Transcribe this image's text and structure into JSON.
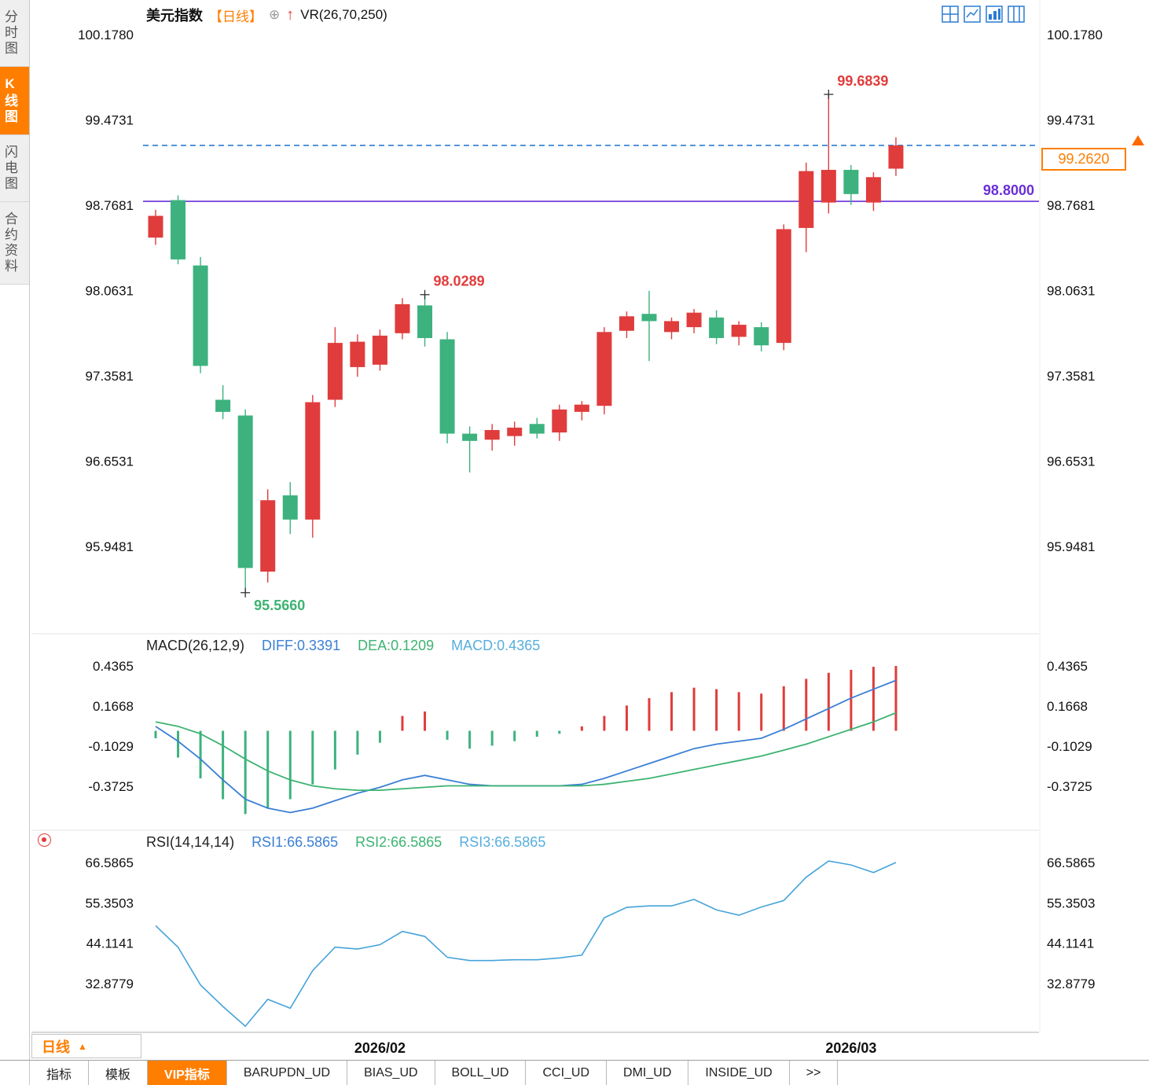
{
  "sidebar": {
    "tabs": [
      {
        "label": "分时图",
        "active": false
      },
      {
        "label": "K线图",
        "active": true
      },
      {
        "label": "闪电图",
        "active": false
      },
      {
        "label": "合约资料",
        "active": false
      }
    ]
  },
  "header": {
    "symbol": "美元指数",
    "period": "【日线】",
    "add_icon": "⊕",
    "arrow_icon": "↑",
    "overlay_indicator": "VR(26,70,250)"
  },
  "top_right_icons": [
    {
      "name": "layout-quad-icon"
    },
    {
      "name": "layout-line-icon"
    },
    {
      "name": "layout-bars-icon"
    },
    {
      "name": "layout-split-icon"
    }
  ],
  "price_box": {
    "value": "99.2620"
  },
  "macd_header": {
    "title": "MACD(26,12,9)",
    "diff": "DIFF:0.3391",
    "dea": "DEA:0.1209",
    "macd": "MACD:0.4365"
  },
  "rsi_header": {
    "title": "RSI(14,14,14)",
    "rsi1": "RSI1:66.5865",
    "rsi2": "RSI2:66.5865",
    "rsi3": "RSI3:66.5865"
  },
  "bottom": {
    "period_label": "日线",
    "period_arrow": "▲"
  },
  "bottom_tabs": {
    "items": [
      {
        "label": "指标",
        "active": false
      },
      {
        "label": "模板",
        "active": false
      },
      {
        "label": "VIP指标",
        "active": true
      },
      {
        "label": "BARUPDN_UD",
        "active": false
      },
      {
        "label": "BIAS_UD",
        "active": false
      },
      {
        "label": "BOLL_UD",
        "active": false
      },
      {
        "label": "CCI_UD",
        "active": false
      },
      {
        "label": "DMI_UD",
        "active": false
      },
      {
        "label": "INSIDE_UD",
        "active": false
      },
      {
        "label": ">>",
        "active": false
      }
    ]
  },
  "chart_data": {
    "type": "candlestick",
    "title": "美元指数 日线",
    "price_axis_ticks": [
      "100.1780",
      "99.4731",
      "98.7681",
      "98.0631",
      "97.3581",
      "96.6531",
      "95.9481"
    ],
    "macd_axis_ticks": [
      "0.4365",
      "0.1668",
      "-0.1029",
      "-0.3725"
    ],
    "rsi_axis_ticks": [
      "66.5865",
      "55.3503",
      "44.1141",
      "32.8779"
    ],
    "x_axis": [
      {
        "label": "2026/02",
        "index": 10
      },
      {
        "label": "2026/03",
        "index": 31
      }
    ],
    "candles": [
      [
        98.5,
        98.73,
        98.44,
        98.68
      ],
      [
        98.81,
        98.85,
        98.28,
        98.32
      ],
      [
        98.27,
        98.34,
        97.38,
        97.44
      ],
      [
        97.16,
        97.28,
        97.0,
        97.06
      ],
      [
        97.03,
        97.08,
        95.566,
        95.77
      ],
      [
        95.74,
        96.42,
        95.65,
        96.33
      ],
      [
        96.37,
        96.48,
        96.05,
        96.17
      ],
      [
        96.17,
        97.2,
        96.02,
        97.14
      ],
      [
        97.16,
        97.76,
        97.1,
        97.63
      ],
      [
        97.43,
        97.7,
        97.35,
        97.64
      ],
      [
        97.45,
        97.74,
        97.4,
        97.69
      ],
      [
        97.71,
        98.0,
        97.66,
        97.95
      ],
      [
        97.94,
        98.0289,
        97.6,
        97.67
      ],
      [
        97.66,
        97.72,
        96.8,
        96.88
      ],
      [
        96.88,
        96.94,
        96.56,
        96.82
      ],
      [
        96.83,
        96.96,
        96.74,
        96.91
      ],
      [
        96.86,
        96.98,
        96.78,
        96.93
      ],
      [
        96.96,
        97.01,
        96.84,
        96.88
      ],
      [
        96.89,
        97.12,
        96.82,
        97.08
      ],
      [
        97.06,
        97.15,
        96.99,
        97.12
      ],
      [
        97.11,
        97.76,
        97.04,
        97.72
      ],
      [
        97.73,
        97.89,
        97.67,
        97.85
      ],
      [
        97.87,
        98.06,
        97.48,
        97.81
      ],
      [
        97.72,
        97.84,
        97.66,
        97.81
      ],
      [
        97.76,
        97.91,
        97.71,
        97.88
      ],
      [
        97.84,
        97.9,
        97.62,
        97.67
      ],
      [
        97.68,
        97.81,
        97.61,
        97.78
      ],
      [
        97.76,
        97.8,
        97.56,
        97.61
      ],
      [
        97.63,
        98.61,
        97.57,
        98.57
      ],
      [
        98.58,
        99.12,
        98.38,
        99.05
      ],
      [
        98.79,
        99.6839,
        98.7,
        99.06
      ],
      [
        99.06,
        99.1,
        98.77,
        98.86
      ],
      [
        98.79,
        99.04,
        98.72,
        99.0
      ],
      [
        99.07,
        99.33,
        99.01,
        99.262
      ]
    ],
    "macd": {
      "diff": [
        0.03,
        -0.07,
        -0.19,
        -0.33,
        -0.46,
        -0.52,
        -0.55,
        -0.52,
        -0.47,
        -0.42,
        -0.38,
        -0.33,
        -0.3,
        -0.33,
        -0.36,
        -0.37,
        -0.37,
        -0.37,
        -0.37,
        -0.36,
        -0.32,
        -0.27,
        -0.22,
        -0.17,
        -0.12,
        -0.09,
        -0.07,
        -0.05,
        0.01,
        0.08,
        0.15,
        0.22,
        0.28,
        0.3391
      ],
      "dea": [
        0.06,
        0.03,
        -0.02,
        -0.1,
        -0.19,
        -0.27,
        -0.33,
        -0.37,
        -0.39,
        -0.4,
        -0.4,
        -0.39,
        -0.38,
        -0.37,
        -0.37,
        -0.37,
        -0.37,
        -0.37,
        -0.37,
        -0.37,
        -0.36,
        -0.34,
        -0.32,
        -0.29,
        -0.26,
        -0.23,
        -0.2,
        -0.17,
        -0.13,
        -0.09,
        -0.04,
        0.01,
        0.06,
        0.1209
      ],
      "hist": [
        -0.05,
        -0.18,
        -0.32,
        -0.46,
        -0.56,
        -0.52,
        -0.46,
        -0.36,
        -0.26,
        -0.16,
        -0.08,
        0.1,
        0.13,
        -0.06,
        -0.12,
        -0.1,
        -0.07,
        -0.04,
        -0.02,
        0.03,
        0.1,
        0.17,
        0.22,
        0.26,
        0.29,
        0.28,
        0.26,
        0.25,
        0.3,
        0.35,
        0.39,
        0.41,
        0.43,
        0.4365
      ]
    },
    "rsi": [
      49,
      43,
      32.5,
      26.5,
      21,
      28.5,
      26,
      36.5,
      43,
      42.5,
      43.7,
      47.4,
      46,
      40.2,
      39.3,
      39.3,
      39.5,
      39.5,
      40,
      40.8,
      51.2,
      54.1,
      54.5,
      54.5,
      56.3,
      53.4,
      51.9,
      54.2,
      56,
      62.5,
      67,
      65.9,
      63.8,
      66.5865
    ],
    "hlines": [
      {
        "price": 98.8,
        "label": "98.8000",
        "color": "#6a2fd8",
        "style": "solid"
      },
      {
        "price": 99.262,
        "label": "",
        "color": "#2b7cd3",
        "style": "dashed"
      }
    ],
    "annotations": [
      {
        "text": "99.6839",
        "index": 30,
        "price": 99.6839,
        "color": "#e03c3c",
        "pos": "above"
      },
      {
        "text": "98.0289",
        "index": 12,
        "price": 98.0289,
        "color": "#e03c3c",
        "pos": "above"
      },
      {
        "text": "95.5660",
        "index": 4,
        "price": 95.566,
        "color": "#3cb371",
        "pos": "below"
      }
    ],
    "colors": {
      "up": "#e03c3c",
      "down": "#3db27e",
      "diff": "#3b7fd4",
      "dea": "#3cb371",
      "rsi": "#45a3d9",
      "accent_orange": "#ff7e00",
      "purple_line": "#6a2fd8",
      "dashed_line": "#2b7cd3"
    }
  }
}
